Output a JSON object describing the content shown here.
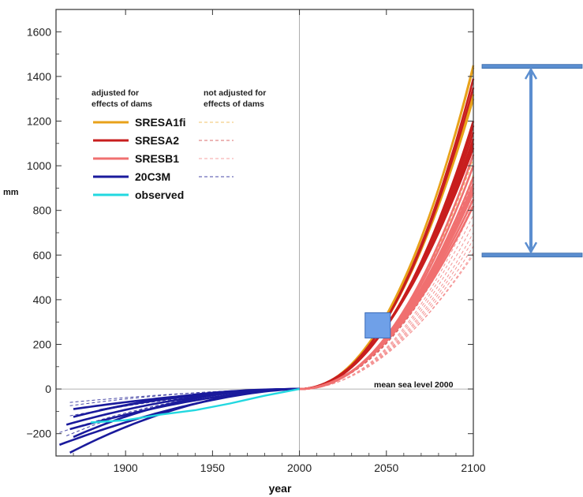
{
  "chart_data": {
    "type": "line",
    "title": "",
    "xlabel": "year",
    "ylabel": "mm",
    "xlim": [
      1860,
      2100
    ],
    "ylim": [
      -300,
      1700
    ],
    "x_ticks": [
      1900,
      1950,
      2000,
      2050,
      2100
    ],
    "y_ticks": [
      -200,
      0,
      200,
      400,
      600,
      800,
      1000,
      1200,
      1400,
      1600
    ],
    "grid": false,
    "reference_lines": {
      "vertical_x": 2000,
      "horizontal_y": 0
    },
    "annotation": "mean sea level 2000",
    "legend": {
      "placement": "upper-left",
      "header_adjusted": "adjusted for effects of dams",
      "header_not_adjusted": "not adjusted for effects of dams",
      "entries": [
        {
          "label": "SRESA1fi",
          "color": "#e8a21a",
          "has_not_adjusted": true
        },
        {
          "label": "SRESA2",
          "color": "#c81e1e",
          "has_not_adjusted": true
        },
        {
          "label": "SRESB1",
          "color": "#f07070",
          "has_not_adjusted": true
        },
        {
          "label": "20C3M",
          "color": "#1a1a9c",
          "has_not_adjusted": true
        },
        {
          "label": "observed",
          "color": "#22d8e0",
          "has_not_adjusted": false
        }
      ]
    },
    "series": [
      {
        "name": "SRESA1fi",
        "style": "solid",
        "x0": 2000,
        "x1": 2100,
        "end_values": [
          1450,
          1440,
          1320,
          1300
        ]
      },
      {
        "name": "SRESA2",
        "style": "solid",
        "x0": 2000,
        "x1": 2100,
        "end_values": [
          1390,
          1350,
          1200,
          1180,
          1150,
          1120,
          1100,
          1080
        ]
      },
      {
        "name": "SRESB1",
        "style": "solid",
        "x0": 2000,
        "x1": 2100,
        "end_values": [
          1050,
          1000,
          950,
          920,
          900,
          880,
          850,
          820
        ]
      },
      {
        "name": "SRESA1fi",
        "style": "dashed",
        "x0": 2000,
        "x1": 2100,
        "end_values": [
          1030,
          960
        ]
      },
      {
        "name": "SRESA2",
        "style": "dashed",
        "x0": 2000,
        "x1": 2100,
        "end_values": [
          1000,
          940,
          900,
          860,
          830
        ]
      },
      {
        "name": "SRESB1",
        "style": "dashed",
        "x0": 2000,
        "x1": 2100,
        "end_values": [
          820,
          780,
          740,
          700,
          670,
          640,
          610,
          600
        ]
      },
      {
        "name": "20C3M",
        "style": "solid",
        "x1": 2000,
        "starts": [
          [
            1862,
            -250
          ],
          [
            1868,
            -285
          ],
          [
            1870,
            -215
          ],
          [
            1868,
            -180
          ],
          [
            1866,
            -160
          ],
          [
            1870,
            -125
          ],
          [
            1870,
            -90
          ],
          [
            1885,
            -95
          ]
        ]
      },
      {
        "name": "20C3M",
        "style": "dashed",
        "x1": 2000,
        "starts": [
          [
            1868,
            -60
          ],
          [
            1868,
            -75
          ],
          [
            1866,
            -210
          ],
          [
            1868,
            -120
          ],
          [
            1862,
            -195
          ]
        ]
      },
      {
        "name": "observed",
        "style": "solid",
        "points": [
          [
            1880,
            -150
          ],
          [
            1900,
            -140
          ],
          [
            1920,
            -115
          ],
          [
            1940,
            -95
          ],
          [
            1960,
            -65
          ],
          [
            1980,
            -30
          ],
          [
            2000,
            0
          ]
        ]
      }
    ],
    "overlays": {
      "range_arrow_top_value": 1445,
      "range_arrow_bottom_value": 600,
      "marker_square": {
        "x": 2045,
        "y": 285
      }
    }
  }
}
